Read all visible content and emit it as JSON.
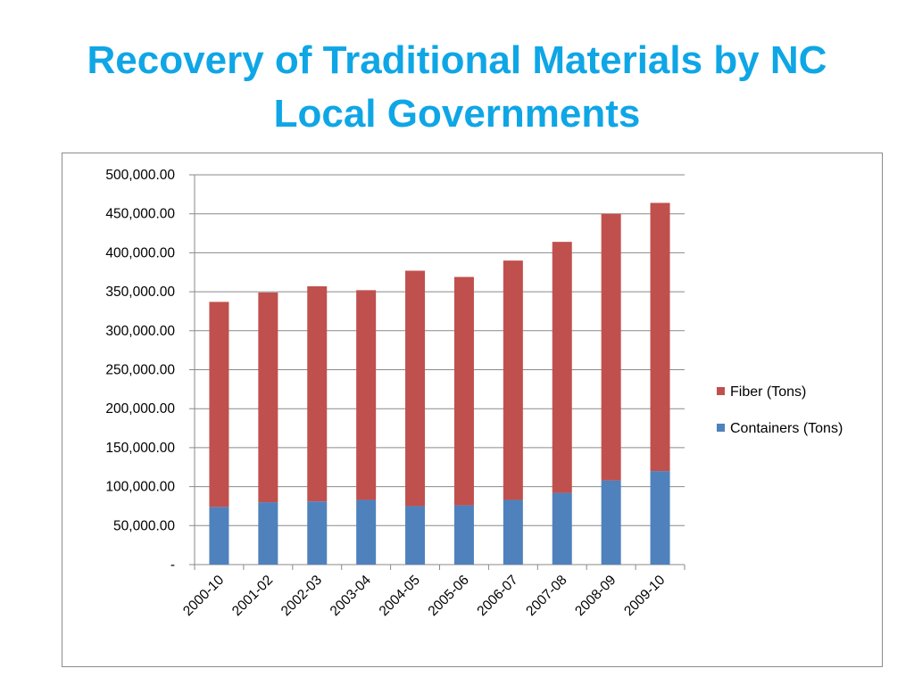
{
  "slide": {
    "title_lines": [
      "Recovery of Traditional Materials by NC",
      "Local Governments"
    ]
  },
  "chart_data": {
    "type": "bar",
    "stacked": true,
    "categories": [
      "2000-10",
      "2001-02",
      "2002-03",
      "2003-04",
      "2004-05",
      "2005-06",
      "2006-07",
      "2007-08",
      "2008-09",
      "2009-10"
    ],
    "series": [
      {
        "name": "Containers (Tons)",
        "color": "#4f81bd",
        "values": [
          74000,
          80000,
          81000,
          83000,
          75000,
          76000,
          83000,
          92000,
          108000,
          120000
        ]
      },
      {
        "name": "Fiber (Tons)",
        "color": "#c0504d",
        "values": [
          263000,
          269000,
          276000,
          269000,
          302000,
          293000,
          307000,
          322000,
          342000,
          344000
        ]
      }
    ],
    "ylim": [
      0,
      500000
    ],
    "y_ticks": [
      0,
      50000,
      100000,
      150000,
      200000,
      250000,
      300000,
      350000,
      400000,
      450000,
      500000
    ],
    "y_tick_labels": [
      "-",
      "50,000.00",
      "100,000.00",
      "150,000.00",
      "200,000.00",
      "250,000.00",
      "300,000.00",
      "350,000.00",
      "400,000.00",
      "450,000.00",
      "500,000.00"
    ],
    "grid": true,
    "legend_placement": "right",
    "legend_order": [
      "Fiber (Tons)",
      "Containers (Tons)"
    ],
    "title": "",
    "xlabel": "",
    "ylabel": ""
  }
}
